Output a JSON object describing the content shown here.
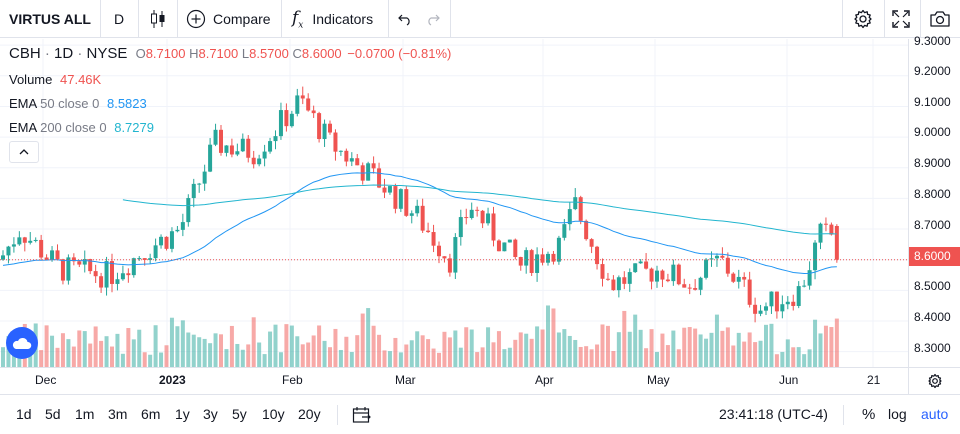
{
  "toolbar": {
    "symbol": "VIRTUS ALL",
    "interval": "D",
    "compare_label": "Compare",
    "indicators_label": "Indicators"
  },
  "legend": {
    "ticker": "CBH",
    "interval": "1D",
    "exchange": "NYSE",
    "open_label": "O",
    "open": "8.7100",
    "high_label": "H",
    "high": "8.7100",
    "low_label": "L",
    "low": "8.5700",
    "close_label": "C",
    "close": "8.6000",
    "change": "−0.0700 (−0.81%)",
    "volume_label": "Volume",
    "volume": "47.46K",
    "ema50_label": "EMA",
    "ema50_params": "50 close 0",
    "ema50_value": "8.5823",
    "ema200_label": "EMA",
    "ema200_params": "200 close 0",
    "ema200_value": "8.7279"
  },
  "price_axis": {
    "labels": [
      "9.3000",
      "9.2000",
      "9.1000",
      "9.0000",
      "8.9000",
      "8.8000",
      "8.7000",
      "8.6000",
      "8.5000",
      "8.4000",
      "8.3000"
    ],
    "last_price": "8.6000"
  },
  "time_axis": {
    "labels": [
      "Dec",
      "2023",
      "Feb",
      "Mar",
      "Apr",
      "May",
      "Jun",
      "21"
    ]
  },
  "bottom_bar": {
    "ranges": [
      "1d",
      "5d",
      "1m",
      "3m",
      "6m",
      "1y",
      "3y",
      "5y",
      "10y",
      "20y"
    ],
    "clock": "23:41:18 (UTC-4)",
    "percent": "%",
    "log": "log",
    "auto": "auto"
  },
  "colors": {
    "up": "#26a69a",
    "down": "#ef5350",
    "ema50": "#2196f3",
    "ema200": "#22b5cf",
    "accent": "#2962ff"
  },
  "chart_data": {
    "type": "candlestick",
    "symbol": "CBH",
    "y_range": [
      8.25,
      9.32
    ],
    "last_price": 8.6,
    "series": [
      {
        "name": "EMA 50 close 0",
        "last": 8.5823
      },
      {
        "name": "EMA 200 close 0",
        "last": 8.7279
      },
      {
        "name": "Volume",
        "last": "47.46K"
      }
    ]
  }
}
